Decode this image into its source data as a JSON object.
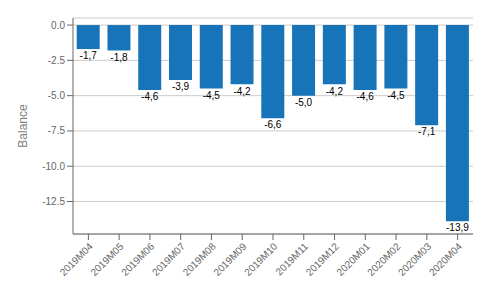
{
  "chart_data": {
    "type": "bar",
    "ylabel": "Balance",
    "categories": [
      "2019M04",
      "2019M05",
      "2019M06",
      "2019M07",
      "2019M08",
      "2019M09",
      "2019M10",
      "2019M11",
      "2019M12",
      "2020M01",
      "2020M02",
      "2020M03",
      "2020M04"
    ],
    "values": [
      -1.7,
      -1.8,
      -4.6,
      -3.9,
      -4.5,
      -4.2,
      -6.6,
      -5.0,
      -4.2,
      -4.6,
      -4.5,
      -7.1,
      -13.9
    ],
    "value_labels": [
      "-1,7",
      "-1,8",
      "-4,6",
      "-3,9",
      "-4,5",
      "-4,2",
      "-6,6",
      "-5,0",
      "-4,2",
      "-4,6",
      "-4,5",
      "-7,1",
      "-13,9"
    ],
    "data_labels": true,
    "color": "#1874b8",
    "ylim": [
      -14.8,
      0.5
    ],
    "yticks": [
      {
        "value": 0.0,
        "label": "0.0"
      },
      -2.5,
      {
        "value": -5.0,
        "label": "-5.0"
      },
      -7.5,
      {
        "value": -10.0,
        "label": "-10.0"
      },
      -12.5
    ],
    "grid": true
  }
}
